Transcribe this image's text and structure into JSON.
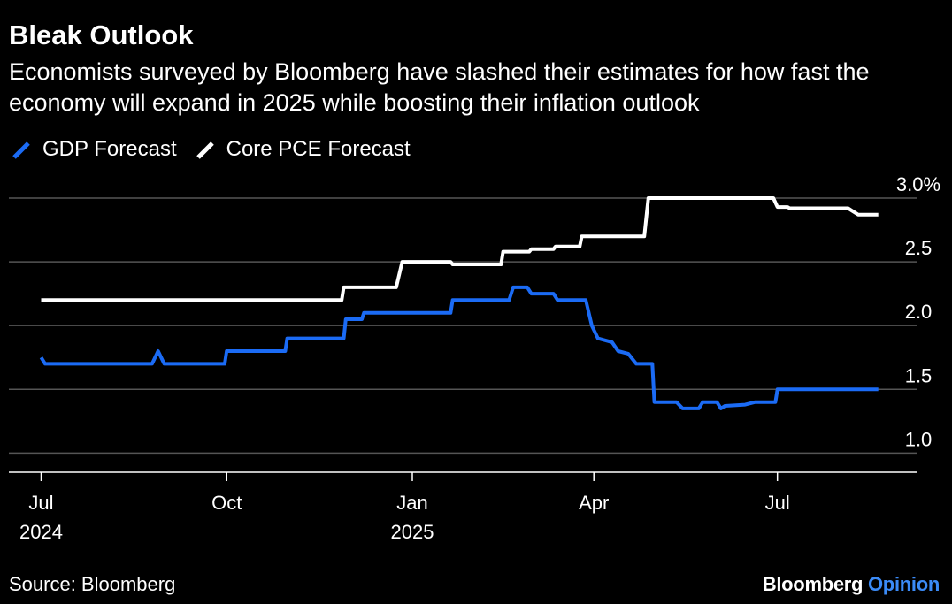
{
  "title": "Bleak Outlook",
  "subtitle": "Economists surveyed by Bloomberg have slashed their estimates for how fast the economy will expand in 2025 while boosting their inflation outlook",
  "footer": {
    "source": "Source: Bloomberg",
    "brand_name": "Bloomberg",
    "brand_accent": "Opinion"
  },
  "colors": {
    "background": "#000000",
    "gdp": "#1b6bf5",
    "pce": "#ffffff",
    "grid": "#555555"
  },
  "chart_data": {
    "type": "line",
    "title": "Bleak Outlook",
    "x_axis": {
      "type": "date",
      "range": [
        "2024-06-15",
        "2025-09-08"
      ],
      "ticks": [
        {
          "date": "2024-07-01",
          "label": "Jul",
          "sublabel": "2024"
        },
        {
          "date": "2024-10-01",
          "label": "Oct",
          "sublabel": ""
        },
        {
          "date": "2025-01-01",
          "label": "Jan",
          "sublabel": "2025"
        },
        {
          "date": "2025-04-01",
          "label": "Apr",
          "sublabel": ""
        },
        {
          "date": "2025-07-01",
          "label": "Jul",
          "sublabel": ""
        }
      ]
    },
    "y_axis": {
      "range": [
        0.85,
        3.0
      ],
      "position": "right",
      "ticks": [
        {
          "value": 1.0,
          "label": "1.0"
        },
        {
          "value": 1.5,
          "label": "1.5"
        },
        {
          "value": 2.0,
          "label": "2.0"
        },
        {
          "value": 2.5,
          "label": "2.5"
        },
        {
          "value": 3.0,
          "label": "3.0%"
        }
      ]
    },
    "grid": true,
    "legend": "top-left",
    "series": [
      {
        "name": "GDP Forecast",
        "key": "gdp",
        "points": [
          [
            "2024-07-01",
            1.75
          ],
          [
            "2024-07-03",
            1.7
          ],
          [
            "2024-08-25",
            1.7
          ],
          [
            "2024-08-28",
            1.8
          ],
          [
            "2024-08-31",
            1.7
          ],
          [
            "2024-09-30",
            1.7
          ],
          [
            "2024-10-01",
            1.8
          ],
          [
            "2024-10-30",
            1.8
          ],
          [
            "2024-10-31",
            1.9
          ],
          [
            "2024-11-28",
            1.9
          ],
          [
            "2024-11-29",
            2.05
          ],
          [
            "2024-12-07",
            2.05
          ],
          [
            "2024-12-08",
            2.1
          ],
          [
            "2025-01-20",
            2.1
          ],
          [
            "2025-01-21",
            2.2
          ],
          [
            "2025-02-18",
            2.2
          ],
          [
            "2025-02-20",
            2.3
          ],
          [
            "2025-02-27",
            2.3
          ],
          [
            "2025-03-01",
            2.25
          ],
          [
            "2025-03-12",
            2.25
          ],
          [
            "2025-03-14",
            2.2
          ],
          [
            "2025-03-28",
            2.2
          ],
          [
            "2025-03-31",
            2.0
          ],
          [
            "2025-04-03",
            1.9
          ],
          [
            "2025-04-10",
            1.87
          ],
          [
            "2025-04-13",
            1.8
          ],
          [
            "2025-04-18",
            1.78
          ],
          [
            "2025-04-22",
            1.7
          ],
          [
            "2025-04-30",
            1.7
          ],
          [
            "2025-05-01",
            1.4
          ],
          [
            "2025-05-12",
            1.4
          ],
          [
            "2025-05-15",
            1.35
          ],
          [
            "2025-05-23",
            1.35
          ],
          [
            "2025-05-25",
            1.4
          ],
          [
            "2025-06-01",
            1.4
          ],
          [
            "2025-06-03",
            1.35
          ],
          [
            "2025-06-05",
            1.37
          ],
          [
            "2025-06-15",
            1.38
          ],
          [
            "2025-06-20",
            1.4
          ],
          [
            "2025-06-30",
            1.4
          ],
          [
            "2025-07-01",
            1.5
          ],
          [
            "2025-08-20",
            1.5
          ]
        ]
      },
      {
        "name": "Core PCE Forecast",
        "key": "pce",
        "points": [
          [
            "2024-07-01",
            2.2
          ],
          [
            "2024-11-27",
            2.2
          ],
          [
            "2024-11-28",
            2.3
          ],
          [
            "2024-12-24",
            2.3
          ],
          [
            "2024-12-27",
            2.5
          ],
          [
            "2025-01-20",
            2.5
          ],
          [
            "2025-01-21",
            2.48
          ],
          [
            "2025-02-14",
            2.48
          ],
          [
            "2025-02-15",
            2.58
          ],
          [
            "2025-02-28",
            2.58
          ],
          [
            "2025-03-01",
            2.6
          ],
          [
            "2025-03-12",
            2.6
          ],
          [
            "2025-03-13",
            2.62
          ],
          [
            "2025-03-25",
            2.62
          ],
          [
            "2025-03-26",
            2.7
          ],
          [
            "2025-04-26",
            2.7
          ],
          [
            "2025-04-28",
            3.0
          ],
          [
            "2025-06-29",
            3.0
          ],
          [
            "2025-07-01",
            2.93
          ],
          [
            "2025-07-06",
            2.93
          ],
          [
            "2025-07-07",
            2.92
          ],
          [
            "2025-08-05",
            2.92
          ],
          [
            "2025-08-10",
            2.87
          ],
          [
            "2025-08-20",
            2.87
          ]
        ]
      }
    ]
  }
}
